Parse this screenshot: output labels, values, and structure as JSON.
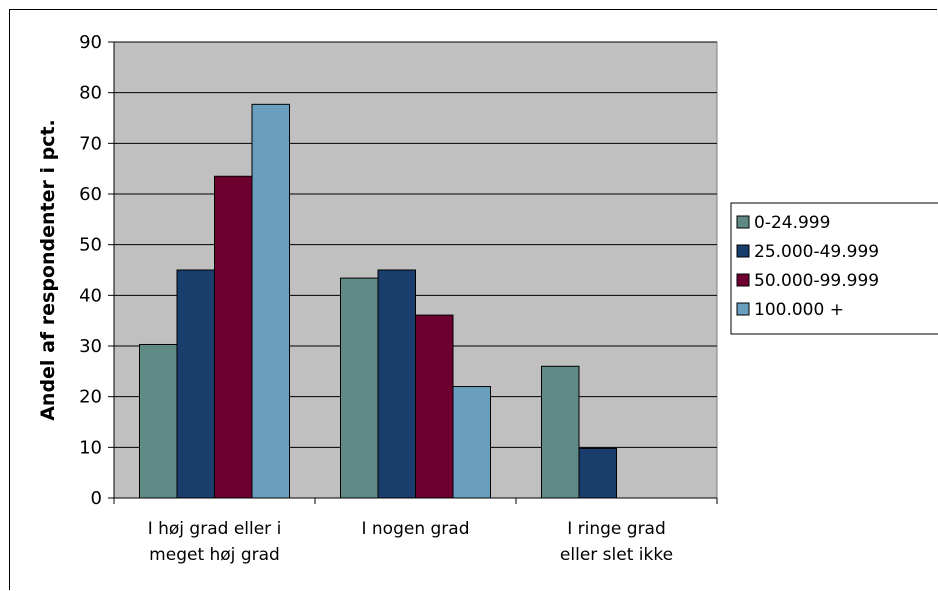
{
  "chart_data": {
    "type": "bar",
    "ylabel": "Andel af respondenter i pct.",
    "ylim": [
      0,
      90
    ],
    "yticks": [
      "0",
      "10",
      "20",
      "30",
      "40",
      "50",
      "60",
      "70",
      "80",
      "90"
    ],
    "categories": [
      [
        "I høj grad eller i",
        "meget høj grad"
      ],
      [
        "I nogen grad"
      ],
      [
        "I ringe grad",
        "eller slet ikke"
      ]
    ],
    "series": [
      {
        "name": "0-24.999",
        "color": "#5f8a86",
        "values": [
          30.3,
          43.4,
          26.0
        ]
      },
      {
        "name": "25.000-49.999",
        "color": "#1a3e6c",
        "values": [
          45.0,
          45.0,
          9.8
        ]
      },
      {
        "name": "50.000-99.999",
        "color": "#6e0030",
        "values": [
          63.5,
          36.1,
          0
        ]
      },
      {
        "name": "100.000 +",
        "color": "#6a9ebe",
        "values": [
          77.7,
          22.0,
          0
        ]
      }
    ],
    "grid": true,
    "legend": "right",
    "plot_background": "#c0c0c0"
  }
}
